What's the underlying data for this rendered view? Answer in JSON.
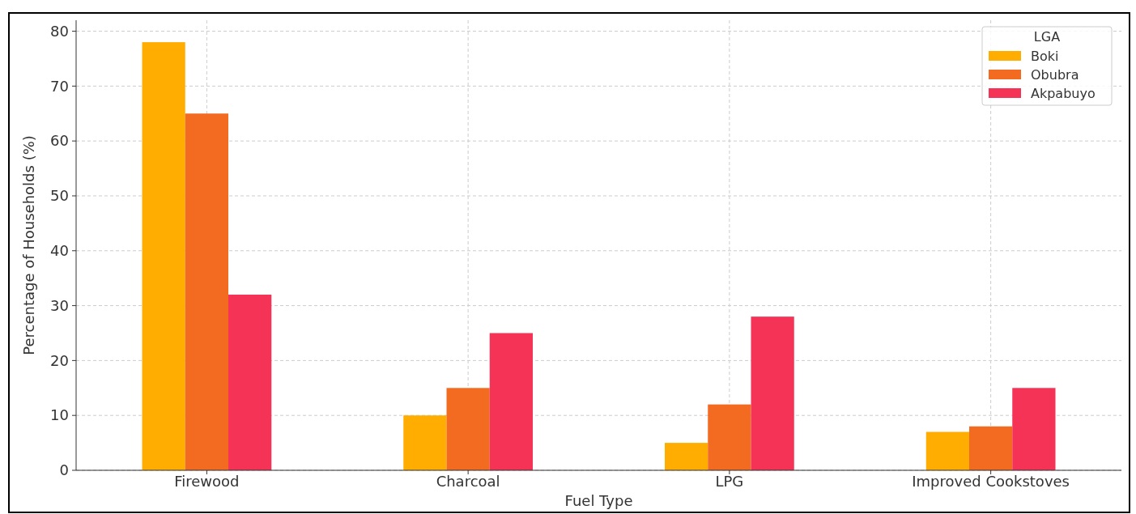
{
  "chart_data": {
    "type": "bar",
    "xlabel": "Fuel Type",
    "ylabel": "Percentage of Households (%)",
    "legend_title": "LGA",
    "categories": [
      "Firewood",
      "Charcoal",
      "LPG",
      "Improved Cookstoves"
    ],
    "series": [
      {
        "name": "Boki",
        "color": "#ffad00",
        "values": [
          78,
          10,
          5,
          7
        ]
      },
      {
        "name": "Obubra",
        "color": "#f26b21",
        "values": [
          65,
          15,
          12,
          8
        ]
      },
      {
        "name": "Akpabuyo",
        "color": "#f43356",
        "values": [
          32,
          25,
          28,
          15
        ]
      }
    ],
    "ylim": [
      0,
      82
    ],
    "yticks": [
      0,
      10,
      20,
      30,
      40,
      50,
      60,
      70,
      80
    ],
    "grid": true,
    "legend": "top right"
  }
}
